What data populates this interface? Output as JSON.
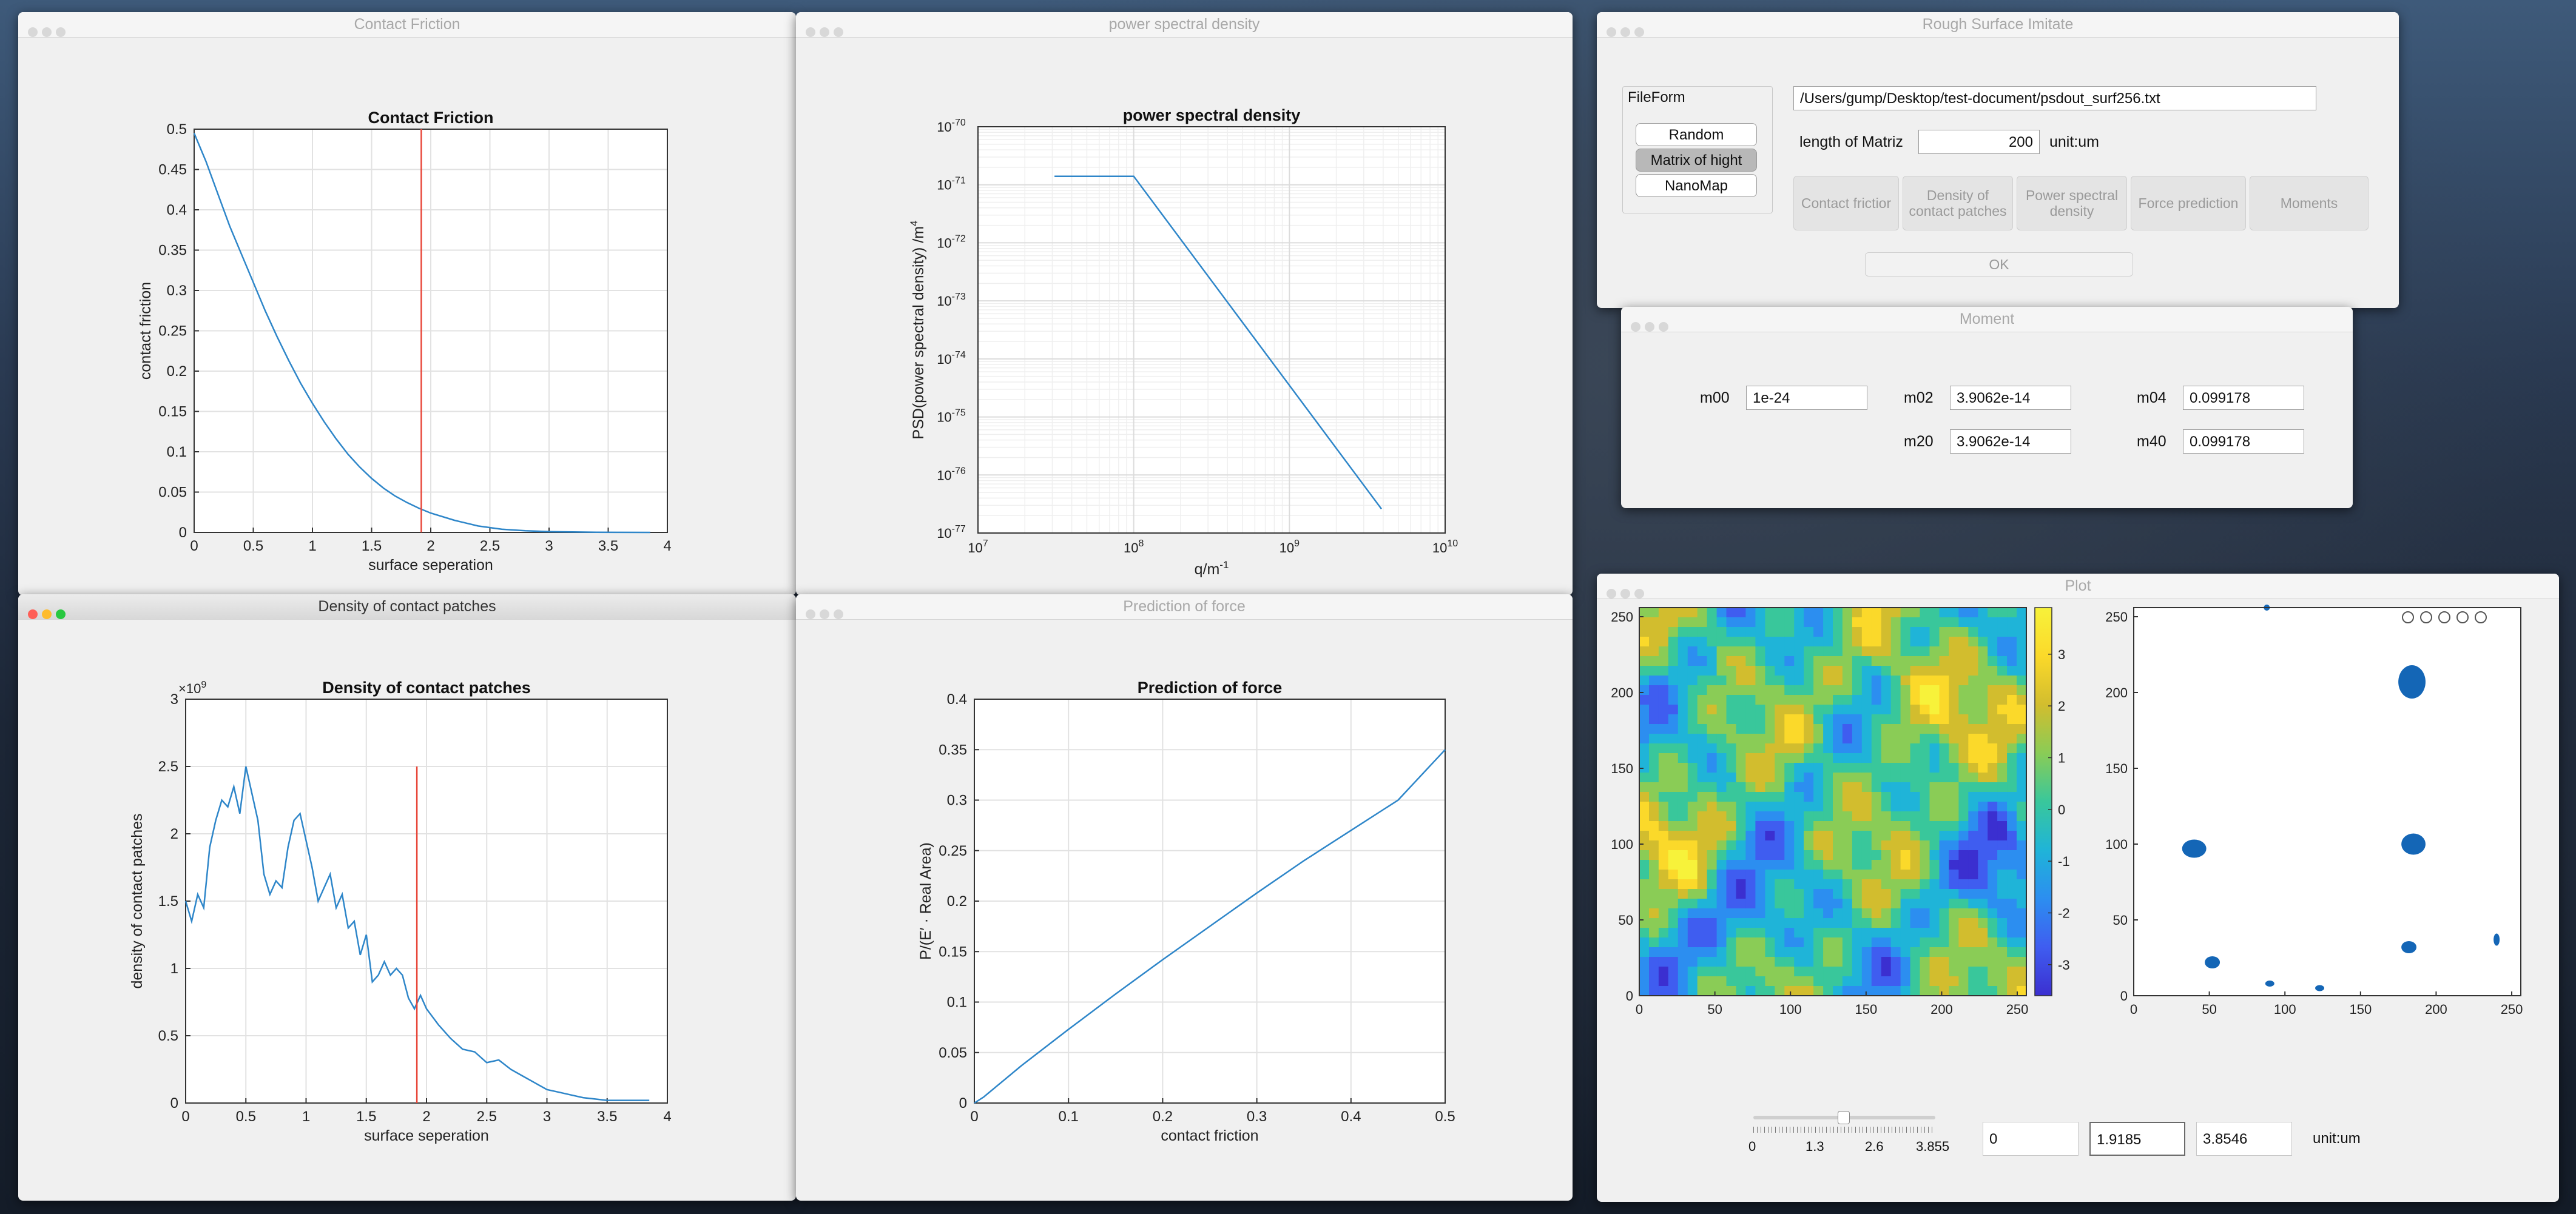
{
  "colors": {
    "line": "#2e86c9",
    "marker": "#e8473a",
    "scatter": "#1466b6"
  },
  "windows": {
    "contact_friction": {
      "title": "Contact Friction"
    },
    "psd": {
      "title": "power spectral density"
    },
    "density": {
      "title": "Density of contact patches"
    },
    "force": {
      "title": "Prediction of force"
    },
    "rough": {
      "title": "Rough Surface Imitate"
    },
    "moment": {
      "title": "Moment"
    },
    "plot": {
      "title": "Plot"
    }
  },
  "rough": {
    "fileform_label": "FileForm",
    "options": [
      "Random",
      "Matrix of hight",
      "NanoMap"
    ],
    "selected_option": "Matrix of hight",
    "file_path": "/Users/gump/Desktop/test-document/psdout_surf256.txt",
    "length_label": "length of Matriz",
    "length_value": "200",
    "unit_label": "unit:um",
    "action_buttons": [
      {
        "line1": "Contact frictior",
        "line2": ""
      },
      {
        "line1": "Density of",
        "line2": "contact patches"
      },
      {
        "line1": "Power spectral",
        "line2": "density"
      },
      {
        "line1": "Force prediction",
        "line2": ""
      },
      {
        "line1": "Moments",
        "line2": ""
      }
    ],
    "ok_label": "OK"
  },
  "moment": {
    "m00_label": "m00",
    "m00_value": "1e-24",
    "m02_label": "m02",
    "m02_value": "3.9062e-14",
    "m04_label": "m04",
    "m04_value": "0.099178",
    "m20_label": "m20",
    "m20_value": "3.9062e-14",
    "m40_label": "m40",
    "m40_value": "0.099178"
  },
  "plot": {
    "slider_value": 1.9185,
    "slider_min": 0,
    "slider_max": 3.855,
    "slider_ticks": [
      "0",
      "1.3",
      "2.6",
      "3.855"
    ],
    "field_min": "0",
    "field_value": "1.9185",
    "field_max": "3.8546",
    "unit_label": "unit:um",
    "axis_ticks": [
      "0",
      "50",
      "100",
      "150",
      "200",
      "250"
    ],
    "colorbar_ticks": [
      "3",
      "2",
      "1",
      "0",
      "-1",
      "-2",
      "-3"
    ],
    "colorbar_range": [
      -3.6,
      3.9
    ],
    "toolbar_icons": [
      "export-icon",
      "pan-hand-icon",
      "zoom-in-icon",
      "zoom-out-icon",
      "home-icon"
    ]
  },
  "chart_data": [
    {
      "id": "contact_friction",
      "type": "line",
      "title": "Contact Friction",
      "xlabel": "surface seperation",
      "ylabel": "contact friction",
      "xlim": [
        0,
        4
      ],
      "ylim": [
        0,
        0.5
      ],
      "xticks": [
        "0",
        "0.5",
        "1",
        "1.5",
        "2",
        "2.5",
        "3",
        "3.5",
        "4"
      ],
      "yticks": [
        "0",
        "0.05",
        "0.1",
        "0.15",
        "0.2",
        "0.25",
        "0.3",
        "0.35",
        "0.4",
        "0.45",
        "0.5"
      ],
      "grid": true,
      "marker_x": 1.92,
      "x": [
        0,
        0.1,
        0.2,
        0.3,
        0.4,
        0.5,
        0.6,
        0.7,
        0.8,
        0.9,
        1.0,
        1.1,
        1.2,
        1.3,
        1.4,
        1.5,
        1.6,
        1.7,
        1.8,
        1.9,
        2.0,
        2.2,
        2.4,
        2.6,
        2.8,
        3.0,
        3.2,
        3.4,
        3.6,
        3.855
      ],
      "y": [
        0.495,
        0.46,
        0.42,
        0.38,
        0.345,
        0.31,
        0.275,
        0.243,
        0.213,
        0.185,
        0.16,
        0.137,
        0.116,
        0.097,
        0.081,
        0.067,
        0.055,
        0.045,
        0.037,
        0.03,
        0.024,
        0.015,
        0.008,
        0.004,
        0.002,
        0.001,
        0.0005,
        0.0002,
        0.0001,
        0
      ]
    },
    {
      "id": "psd",
      "type": "line",
      "title": "power spectral density",
      "xlabel": "q/m",
      "xlabel_sup": "-1",
      "ylabel": "PSD(power  spectral  density)  /m",
      "ylabel_sup": "4",
      "xscale": "log",
      "yscale": "log",
      "xlim_exp": [
        7,
        10
      ],
      "ylim_exp": [
        -77,
        -70
      ],
      "xticks": [
        "7",
        "8",
        "9",
        "10"
      ],
      "yticks": [
        "-77",
        "-76",
        "-75",
        "-74",
        "-73",
        "-72",
        "-71",
        "-70"
      ],
      "tick_base": "10",
      "grid": true,
      "x": [
        31000000.0,
        100000000.0,
        3900000000.0
      ],
      "y": [
        1.4e-71,
        1.4e-71,
        2.6e-77
      ]
    },
    {
      "id": "density",
      "type": "line",
      "title": "Density of contact patches",
      "xlabel": "surface seperation",
      "ylabel": "density of contact patches",
      "exponent_label": "×10",
      "exponent_sup": "9",
      "xlim": [
        0,
        4
      ],
      "ylim": [
        0,
        3
      ],
      "xticks": [
        "0",
        "0.5",
        "1",
        "1.5",
        "2",
        "2.5",
        "3",
        "3.5",
        "4"
      ],
      "yticks": [
        "0",
        "0.5",
        "1",
        "1.5",
        "2",
        "2.5",
        "3"
      ],
      "grid": true,
      "marker_x": 1.92,
      "marker_top": 2.5,
      "x": [
        0,
        0.05,
        0.1,
        0.15,
        0.2,
        0.25,
        0.3,
        0.35,
        0.4,
        0.45,
        0.5,
        0.55,
        0.6,
        0.65,
        0.7,
        0.75,
        0.8,
        0.85,
        0.9,
        0.95,
        1.0,
        1.05,
        1.1,
        1.15,
        1.2,
        1.25,
        1.3,
        1.35,
        1.4,
        1.45,
        1.5,
        1.55,
        1.6,
        1.65,
        1.7,
        1.75,
        1.8,
        1.85,
        1.9,
        1.95,
        2.0,
        2.1,
        2.2,
        2.3,
        2.4,
        2.5,
        2.6,
        2.7,
        2.8,
        2.9,
        3.0,
        3.1,
        3.2,
        3.3,
        3.5,
        3.7,
        3.85
      ],
      "y": [
        1.5,
        1.35,
        1.55,
        1.45,
        1.9,
        2.1,
        2.25,
        2.2,
        2.35,
        2.15,
        2.5,
        2.3,
        2.1,
        1.7,
        1.55,
        1.65,
        1.6,
        1.9,
        2.1,
        2.15,
        1.95,
        1.75,
        1.5,
        1.6,
        1.7,
        1.45,
        1.55,
        1.3,
        1.35,
        1.1,
        1.25,
        0.9,
        0.95,
        1.05,
        0.95,
        1.0,
        0.95,
        0.78,
        0.7,
        0.8,
        0.7,
        0.58,
        0.48,
        0.4,
        0.38,
        0.3,
        0.32,
        0.25,
        0.2,
        0.15,
        0.1,
        0.08,
        0.06,
        0.04,
        0.02,
        0.02,
        0.02
      ]
    },
    {
      "id": "force",
      "type": "line",
      "title": "Prediction of force",
      "xlabel": "contact friction",
      "ylabel": "P/(E′ ·  Real  Area)",
      "xlim": [
        0,
        0.5
      ],
      "ylim": [
        0,
        0.4
      ],
      "xticks": [
        "0",
        "0.1",
        "0.2",
        "0.3",
        "0.4",
        "0.5"
      ],
      "yticks": [
        "0",
        "0.05",
        "0.1",
        "0.15",
        "0.2",
        "0.25",
        "0.3",
        "0.35",
        "0.4"
      ],
      "grid": true,
      "x": [
        0,
        0.01,
        0.05,
        0.1,
        0.15,
        0.2,
        0.25,
        0.3,
        0.35,
        0.4,
        0.45,
        0.5
      ],
      "y": [
        0,
        0.006,
        0.037,
        0.073,
        0.108,
        0.142,
        0.175,
        0.208,
        0.24,
        0.27,
        0.3,
        0.35
      ]
    }
  ]
}
